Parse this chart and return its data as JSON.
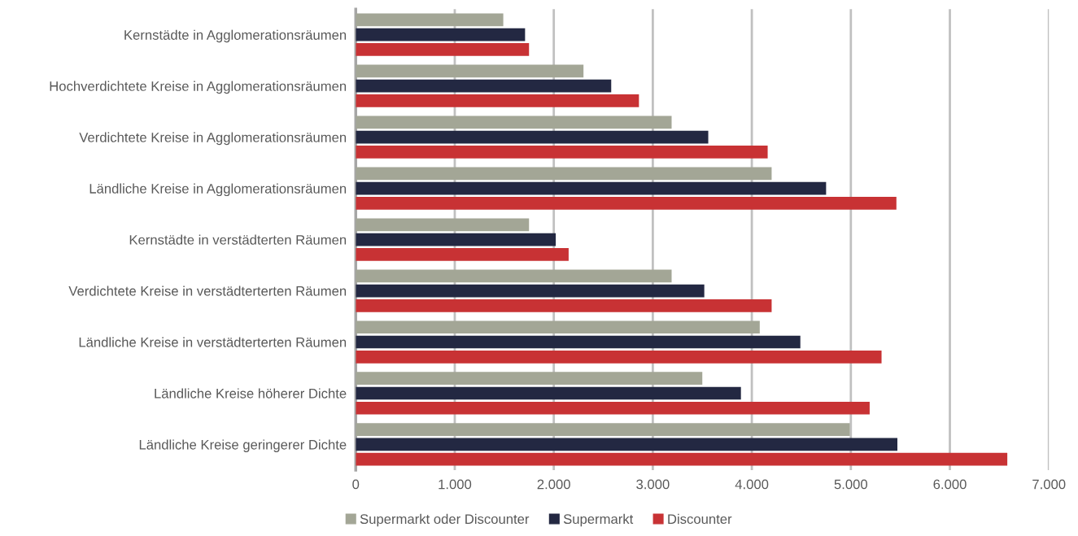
{
  "chart_data": {
    "type": "bar",
    "orientation": "horizontal",
    "categories": [
      "Kernstädte in Agglomerationsräumen",
      "Hochverdichtete Kreise in Agglomerationsräumen",
      "Verdichtete Kreise in Agglomerationsräumen",
      "Ländliche Kreise in Agglomerationsräumen",
      "Kernstädte in verstädterten Räumen",
      "Verdichtete Kreise in verstädterterten Räumen",
      "Ländliche Kreise in verstädterterten Räumen",
      "Ländliche Kreise höherer Dichte",
      "Ländliche Kreise geringerer Dichte"
    ],
    "series": [
      {
        "name": "Supermarkt oder Discounter",
        "color": "#a3a696",
        "values": [
          1490,
          2300,
          3190,
          4200,
          1750,
          3190,
          4080,
          3500,
          4990
        ]
      },
      {
        "name": "Supermarkt",
        "color": "#232842",
        "values": [
          1710,
          2580,
          3560,
          4750,
          2020,
          3520,
          4490,
          3890,
          5470
        ]
      },
      {
        "name": "Discounter",
        "color": "#c83234",
        "values": [
          1750,
          2860,
          4160,
          5460,
          2150,
          4200,
          5310,
          5190,
          6580
        ]
      }
    ],
    "xlim": [
      0,
      7000
    ],
    "xticks": [
      0,
      {
        "value": 1000,
        "label": "1.000"
      },
      {
        "value": 2000,
        "label": "2.000"
      },
      {
        "value": 3000,
        "label": "3.000"
      },
      {
        "value": 4000,
        "label": "4.000"
      },
      {
        "value": 5000,
        "label": "5.000"
      },
      {
        "value": 6000,
        "label": "6.000"
      },
      {
        "value": 7000,
        "label": "7.000"
      }
    ],
    "grid": "x",
    "legend": "bottom"
  }
}
